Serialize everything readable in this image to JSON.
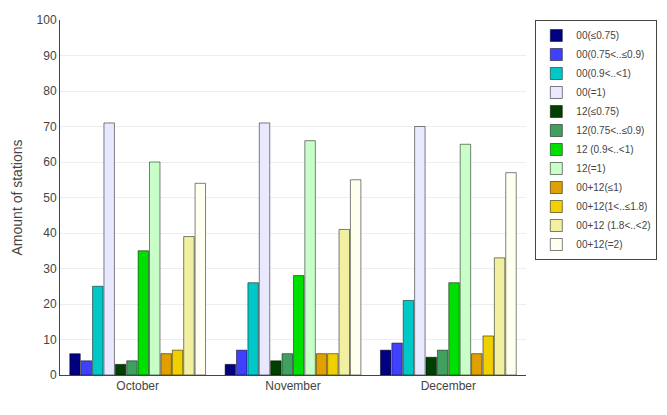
{
  "chart_data": {
    "type": "bar",
    "ylabel": "Amount of stations",
    "categories": [
      "October",
      "November",
      "December"
    ],
    "series": [
      {
        "name": "00(≤0.75)",
        "color": "#000080",
        "values": [
          6,
          3,
          7
        ]
      },
      {
        "name": "00(0.75<..≤0.9)",
        "color": "#4040FF",
        "values": [
          4,
          7,
          9
        ]
      },
      {
        "name": "00(0.9<..<1)",
        "color": "#00C8C8",
        "values": [
          25,
          26,
          21
        ]
      },
      {
        "name": "00(=1)",
        "color": "#E8E8FF",
        "values": [
          71,
          71,
          70
        ]
      },
      {
        "name": "12(≤0.75)",
        "color": "#004000",
        "values": [
          3,
          4,
          5
        ]
      },
      {
        "name": "12(0.75<..≤0.9)",
        "color": "#40A060",
        "values": [
          4,
          6,
          7
        ]
      },
      {
        "name": "12 (0.9<..<1)",
        "color": "#00E000",
        "values": [
          35,
          28,
          26
        ]
      },
      {
        "name": "12(=1)",
        "color": "#C8FFC8",
        "values": [
          60,
          66,
          65
        ]
      },
      {
        "name": "00+12(≤1)",
        "color": "#E0A000",
        "values": [
          6,
          6,
          6
        ]
      },
      {
        "name": "00+12(1<..≤1.8)",
        "color": "#F0D000",
        "values": [
          7,
          6,
          11
        ]
      },
      {
        "name": "00+12 (1.8<..<2)",
        "color": "#F0F0A0",
        "values": [
          39,
          41,
          33
        ]
      },
      {
        "name": "00+12(=2)",
        "color": "#FFFFF0",
        "values": [
          54,
          55,
          57
        ]
      }
    ],
    "ylim": [
      0,
      100
    ],
    "yticks": [
      0,
      10,
      20,
      30,
      40,
      50,
      60,
      70,
      80,
      90,
      100
    ],
    "grid": true,
    "legend": "upper right"
  }
}
